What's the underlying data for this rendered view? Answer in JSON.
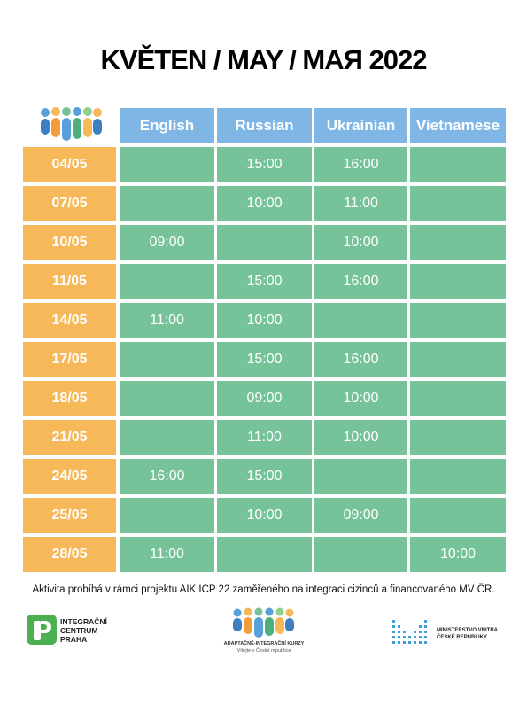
{
  "title": "KVĚTEN / MAY / МАЯ 2022",
  "languages": [
    "English",
    "Russian",
    "Ukrainian",
    "Vietnamese"
  ],
  "rows": [
    {
      "date": "04/05",
      "times": [
        "",
        "15:00",
        "16:00",
        ""
      ]
    },
    {
      "date": "07/05",
      "times": [
        "",
        "10:00",
        "11:00",
        ""
      ]
    },
    {
      "date": "10/05",
      "times": [
        "09:00",
        "",
        "10:00",
        ""
      ]
    },
    {
      "date": "11/05",
      "times": [
        "",
        "15:00",
        "16:00",
        ""
      ]
    },
    {
      "date": "14/05",
      "times": [
        "11:00",
        "10:00",
        "",
        ""
      ]
    },
    {
      "date": "17/05",
      "times": [
        "",
        "15:00",
        "16:00",
        ""
      ]
    },
    {
      "date": "18/05",
      "times": [
        "",
        "09:00",
        "10:00",
        ""
      ]
    },
    {
      "date": "21/05",
      "times": [
        "",
        "11:00",
        "10:00",
        ""
      ]
    },
    {
      "date": "24/05",
      "times": [
        "16:00",
        "15:00",
        "",
        ""
      ]
    },
    {
      "date": "25/05",
      "times": [
        "",
        "10:00",
        "09:00",
        ""
      ]
    },
    {
      "date": "28/05",
      "times": [
        "11:00",
        "",
        "",
        "10:00"
      ]
    }
  ],
  "footnote": "Aktivita probíhá v rámci projektu AIK ICP 22 zaměřeného na integraci cizinců a financovaného MV ČR.",
  "logos": {
    "left_text": "INTEGRAČNÍ\nCENTRUM\nPRAHA",
    "middle_line1": "ADAPTAČNĚ-INTEGRAČNÍ KURZY",
    "middle_line2": "Vítejte v České republice",
    "right_text": "MINISTERSTVO VNITRA\nČESKÉ REPUBLIKY"
  },
  "colors": {
    "header": "#7fb6e6",
    "cell": "#76c39a",
    "date": "#f7b85a"
  }
}
